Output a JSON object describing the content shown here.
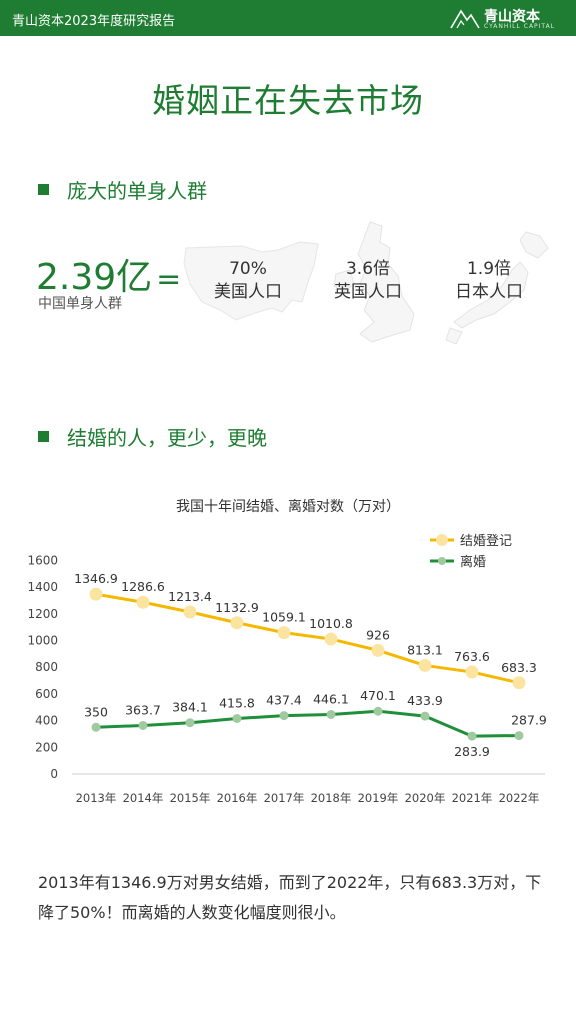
{
  "header": {
    "title": "青山资本2023年度研究报告",
    "brand_name": "青山资本",
    "brand_sub": "CYANHILL CAPITAL",
    "logo_icon": "mountain-logo-icon"
  },
  "page_title": "婚姻正在失去市场",
  "section1": {
    "title": "庞大的单身人群"
  },
  "stat": {
    "value": "2.39亿",
    "equals": "=",
    "label": "中国单身人群"
  },
  "comparisons": [
    {
      "value": "70%",
      "label": "美国人口",
      "map_icon": "usa-map-icon"
    },
    {
      "value": "3.6倍",
      "label": "英国人口",
      "map_icon": "uk-map-icon"
    },
    {
      "value": "1.9倍",
      "label": "日本人口",
      "map_icon": "japan-map-icon"
    }
  ],
  "section2": {
    "title": "结婚的人，更少，更晚"
  },
  "colors": {
    "green": "#1e7d32",
    "marriage": "#f5b800",
    "marriage_dot": "#fbe3a0",
    "divorce": "#1f8f3a",
    "divorce_dot": "#9fc99f"
  },
  "chart_data": {
    "type": "line",
    "title": "我国十年间结婚、离婚对数（万对）",
    "categories": [
      "2013年",
      "2014年",
      "2015年",
      "2016年",
      "2017年",
      "2018年",
      "2019年",
      "2020年",
      "2021年",
      "2022年"
    ],
    "series": [
      {
        "name": "结婚登记",
        "values": [
          1346.9,
          1286.6,
          1213.4,
          1132.9,
          1059.1,
          1010.8,
          926,
          813.1,
          763.6,
          683.3
        ],
        "labels": [
          "1346.9",
          "1286.6",
          "1213.4",
          "1132.9",
          "1059.1",
          "1010.8",
          "926",
          "813.1",
          "763.6",
          "683.3"
        ]
      },
      {
        "name": "离婚",
        "values": [
          350,
          363.7,
          384.1,
          415.8,
          437.4,
          446.1,
          470.1,
          433.9,
          283.9,
          287.9
        ],
        "labels": [
          "350",
          "363.7",
          "384.1",
          "415.8",
          "437.4",
          "446.1",
          "470.1",
          "433.9",
          "283.9",
          "287.9"
        ]
      }
    ],
    "yticks": [
      0,
      200,
      400,
      600,
      800,
      1000,
      1200,
      1400,
      1600
    ],
    "ylim": [
      0,
      1600
    ],
    "legend": "top-right",
    "grid": false
  },
  "body_text": "2013年有1346.9万对男女结婚，而到了2022年，只有683.3万对，下降了50%！而离婚的人数变化幅度则很小。"
}
